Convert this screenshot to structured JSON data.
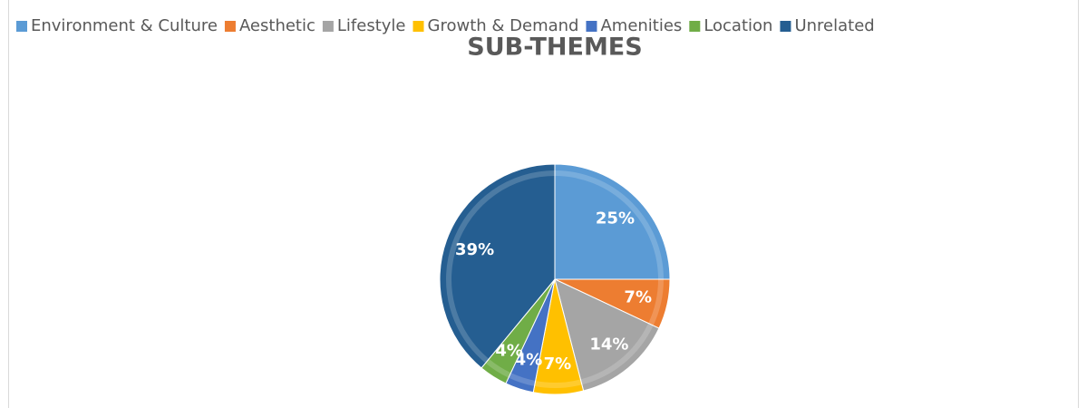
{
  "chart_data": {
    "type": "pie",
    "title": "SUB-THEMES",
    "categories": [
      "Environment & Culture",
      "Aesthetic",
      "Lifestyle",
      "Growth & Demand",
      "Amenities",
      "Location",
      "Unrelated"
    ],
    "values": [
      25,
      7,
      14,
      7,
      4,
      4,
      39
    ],
    "value_labels": [
      "25%",
      "7%",
      "14%",
      "7%",
      "4%",
      "4%",
      "39%"
    ],
    "colors": [
      "#5b9bd5",
      "#ed7d31",
      "#a5a5a5",
      "#ffc000",
      "#4472c4",
      "#70ad47",
      "#255e91"
    ],
    "legend": "top"
  }
}
